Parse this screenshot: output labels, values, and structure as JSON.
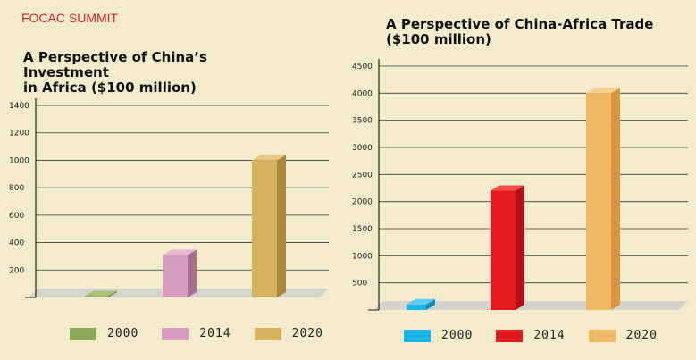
{
  "header": {
    "label": "FOCAC SUMMIT"
  },
  "chart_data": [
    {
      "type": "bar",
      "title": "A Perspective of China’s Investment in Africa ($100 million)",
      "title_lines": [
        "A Perspective of China’s Investment",
        "in Africa ($100 million)"
      ],
      "categories": [
        "2000",
        "2014",
        "2020"
      ],
      "values": [
        10,
        310,
        1000
      ],
      "colors": [
        "#8aaa5a",
        "#d79bbd",
        "#d7b25e"
      ],
      "side_colors": [
        "#6c8a44",
        "#a8708f",
        "#a88741"
      ],
      "top_colors": [
        "#a5c275",
        "#e7b8d2",
        "#e6c77d"
      ],
      "yticks": [
        200,
        400,
        600,
        800,
        1000,
        1200,
        1400
      ],
      "ylim": [
        0,
        1400
      ],
      "legend": [
        "2000",
        "2014",
        "2020"
      ]
    },
    {
      "type": "bar",
      "title": "A Perspective of China-Africa Trade ($100 million)",
      "title_lines": [
        "A Perspective of China-Africa Trade",
        "($100 million)"
      ],
      "categories": [
        "2000",
        "2014",
        "2020"
      ],
      "values": [
        100,
        2200,
        4000
      ],
      "colors": [
        "#1ab4e6",
        "#e51a1f",
        "#f0b860"
      ],
      "side_colors": [
        "#118fba",
        "#b21217",
        "#d8973e"
      ],
      "top_colors": [
        "#5ccdf0",
        "#f04a4d",
        "#f7d090"
      ],
      "yticks": [
        500,
        1000,
        1500,
        2000,
        2500,
        3000,
        3500,
        4000,
        4500
      ],
      "ylim": [
        0,
        4500
      ],
      "legend": [
        "2000",
        "2014",
        "2020"
      ]
    }
  ]
}
